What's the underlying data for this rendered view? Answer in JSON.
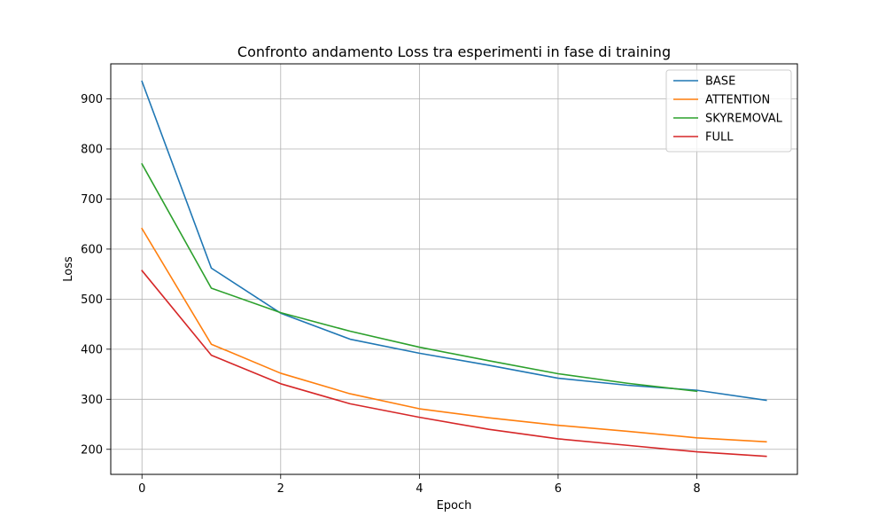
{
  "chart_data": {
    "type": "line",
    "title": "Confronto andamento Loss tra esperimenti in fase di training",
    "xlabel": "Epoch",
    "ylabel": "Loss",
    "xlim": [
      -0.45,
      9.45
    ],
    "ylim": [
      150,
      970
    ],
    "xticks": [
      0,
      2,
      4,
      6,
      8
    ],
    "yticks": [
      200,
      300,
      400,
      500,
      600,
      700,
      800,
      900
    ],
    "grid": true,
    "legend_position": "top-right",
    "series": [
      {
        "name": "BASE",
        "color": "#1f77b4",
        "x": [
          0,
          1,
          2,
          3,
          4,
          5,
          6,
          7,
          8,
          9
        ],
        "values": [
          935,
          562,
          472,
          420,
          392,
          368,
          342,
          328,
          318,
          298
        ]
      },
      {
        "name": "ATTENTION",
        "color": "#ff7f0e",
        "x": [
          0,
          1,
          2,
          3,
          4,
          5,
          6,
          7,
          8,
          9
        ],
        "values": [
          641,
          410,
          352,
          311,
          281,
          263,
          248,
          236,
          223,
          215
        ]
      },
      {
        "name": "SKYREMOVAL",
        "color": "#2ca02c",
        "x": [
          0,
          1,
          2,
          3,
          4,
          5,
          6,
          7,
          8
        ],
        "values": [
          770,
          522,
          473,
          436,
          404,
          377,
          351,
          332,
          316
        ]
      },
      {
        "name": "FULL",
        "color": "#d62728",
        "x": [
          0,
          1,
          2,
          3,
          4,
          5,
          6,
          7,
          8,
          9
        ],
        "values": [
          557,
          388,
          331,
          291,
          264,
          240,
          221,
          208,
          195,
          186
        ]
      }
    ]
  }
}
